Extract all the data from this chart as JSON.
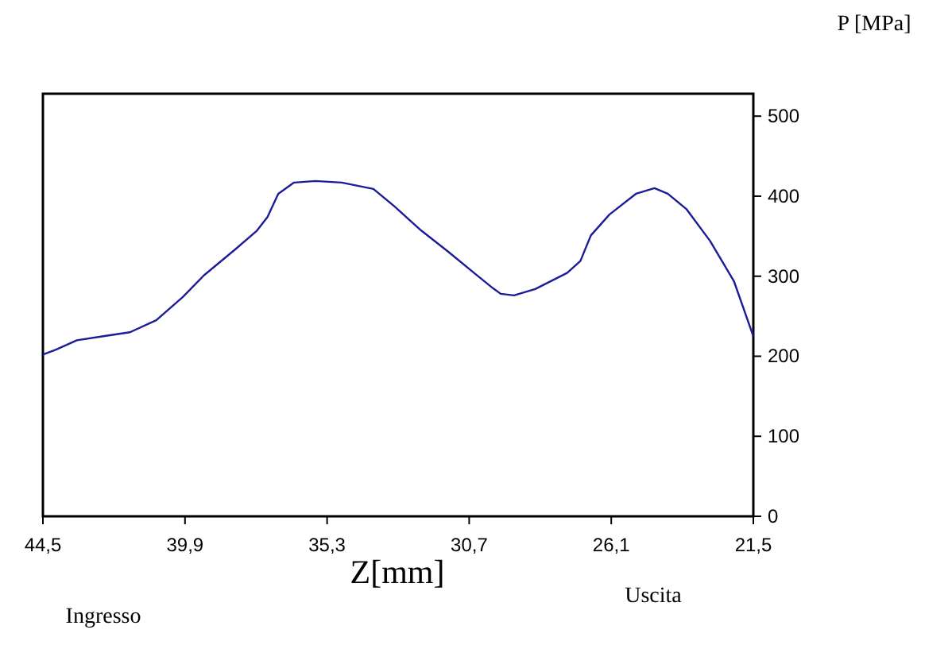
{
  "chart_data": {
    "type": "line",
    "xlabel": "Z[mm]",
    "ylabel": "P [MPa]",
    "annotations": [
      "Ingresso",
      "Uscita"
    ],
    "xlim": [
      44.5,
      21.5
    ],
    "xticks": [
      {
        "value": 44.5,
        "label": "44,5"
      },
      {
        "value": 39.9,
        "label": "39,9"
      },
      {
        "value": 35.3,
        "label": "35,3"
      },
      {
        "value": 30.7,
        "label": "30,7"
      },
      {
        "value": 26.1,
        "label": "26,1"
      },
      {
        "value": 21.5,
        "label": "21,5"
      }
    ],
    "ylim": [
      0,
      528
    ],
    "yticks": [
      0,
      100,
      200,
      300,
      400,
      500
    ],
    "series": [
      {
        "color": "#1c1c99",
        "x": [
          44.5,
          44.09,
          43.4,
          42.54,
          41.68,
          40.83,
          39.97,
          39.29,
          38.26,
          37.57,
          37.23,
          36.88,
          36.37,
          35.68,
          34.82,
          33.8,
          33.11,
          32.25,
          31.39,
          30.54,
          29.93,
          29.68,
          29.25,
          28.56,
          27.53,
          27.1,
          26.76,
          26.16,
          25.3,
          24.7,
          24.27,
          23.67,
          22.9,
          22.13,
          21.5
        ],
        "values": [
          202,
          208,
          220,
          225,
          230,
          245,
          274,
          301,
          334,
          357,
          374,
          403,
          417,
          419,
          417,
          409,
          387,
          357,
          331,
          304,
          285,
          278,
          276,
          284,
          304,
          319,
          351,
          377,
          403,
          410,
          403,
          384,
          344,
          294,
          225
        ]
      }
    ]
  }
}
